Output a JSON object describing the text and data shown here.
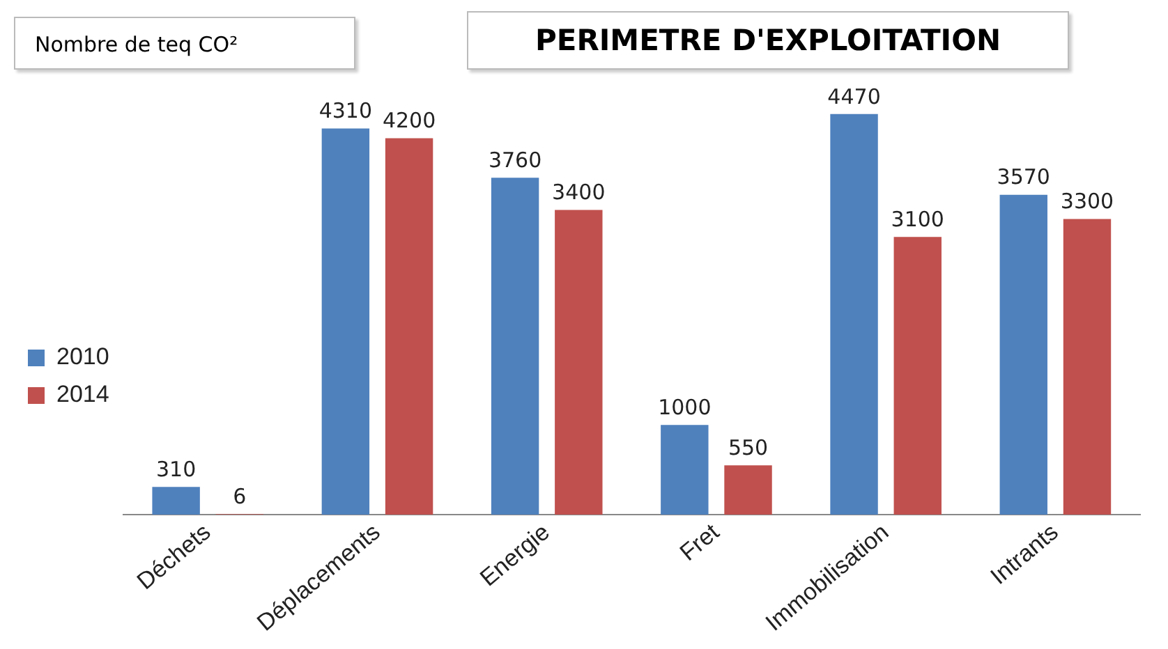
{
  "chart_data": {
    "type": "bar",
    "title": "PERIMETRE D'EXPLOITATION",
    "ylabel": "Nombre de teq CO²",
    "categories": [
      "Déchets",
      "Déplacements",
      "Energie",
      "Fret",
      "Immobilisation",
      "Intrants"
    ],
    "series": [
      {
        "name": "2010",
        "color": "#4f81bd",
        "values": [
          310,
          4310,
          3760,
          1000,
          4470,
          3570
        ]
      },
      {
        "name": "2014",
        "color": "#c0504d",
        "values": [
          6,
          4200,
          3400,
          550,
          3100,
          3300
        ]
      }
    ],
    "data_labels": true,
    "legend": "left",
    "grid": false,
    "tick_labels": "x"
  }
}
